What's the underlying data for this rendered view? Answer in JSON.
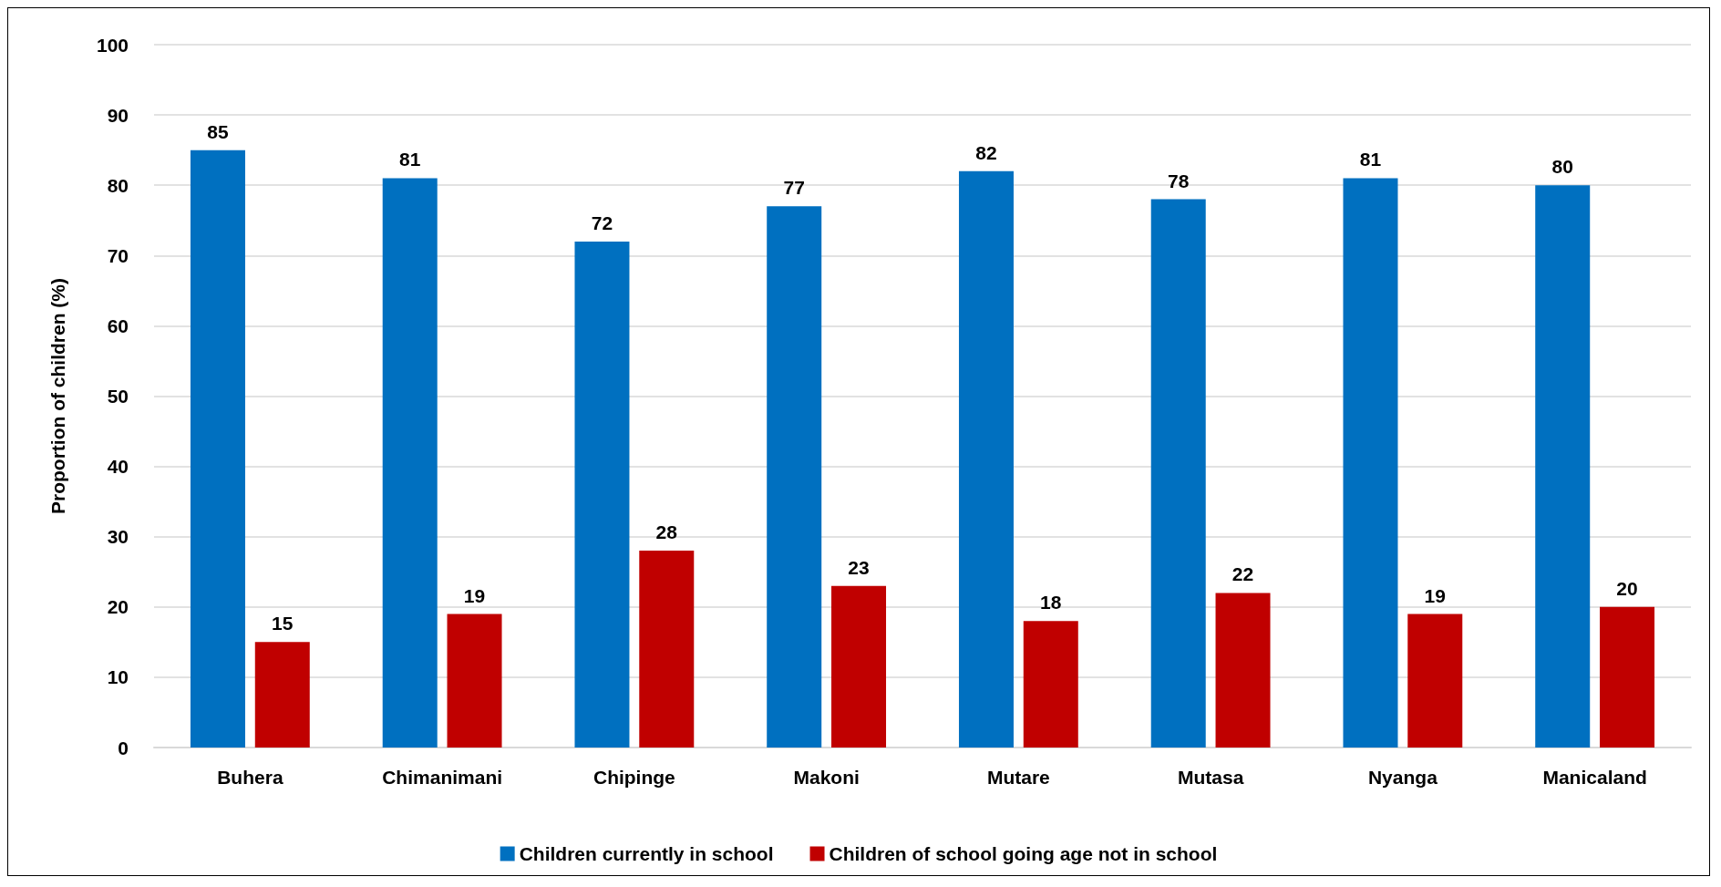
{
  "chart_data": {
    "type": "bar",
    "ylabel": "Proportion of children (%)",
    "categories": [
      "Buhera",
      "Chimanimani",
      "Chipinge",
      "Makoni",
      "Mutare",
      "Mutasa",
      "Nyanga",
      "Manicaland"
    ],
    "series": [
      {
        "name": "Children currently in school",
        "color": "#0070c0",
        "values": [
          85,
          81,
          72,
          77,
          82,
          78,
          81,
          80
        ]
      },
      {
        "name": "Children of school going age not in school",
        "color": "#c00000",
        "values": [
          15,
          19,
          28,
          23,
          18,
          22,
          19,
          20
        ]
      }
    ],
    "ylim": [
      0,
      100
    ],
    "yticks": [
      0,
      10,
      20,
      30,
      40,
      50,
      60,
      70,
      80,
      90,
      100
    ],
    "grid": "y",
    "legend": "bottom",
    "data_labels": true
  }
}
